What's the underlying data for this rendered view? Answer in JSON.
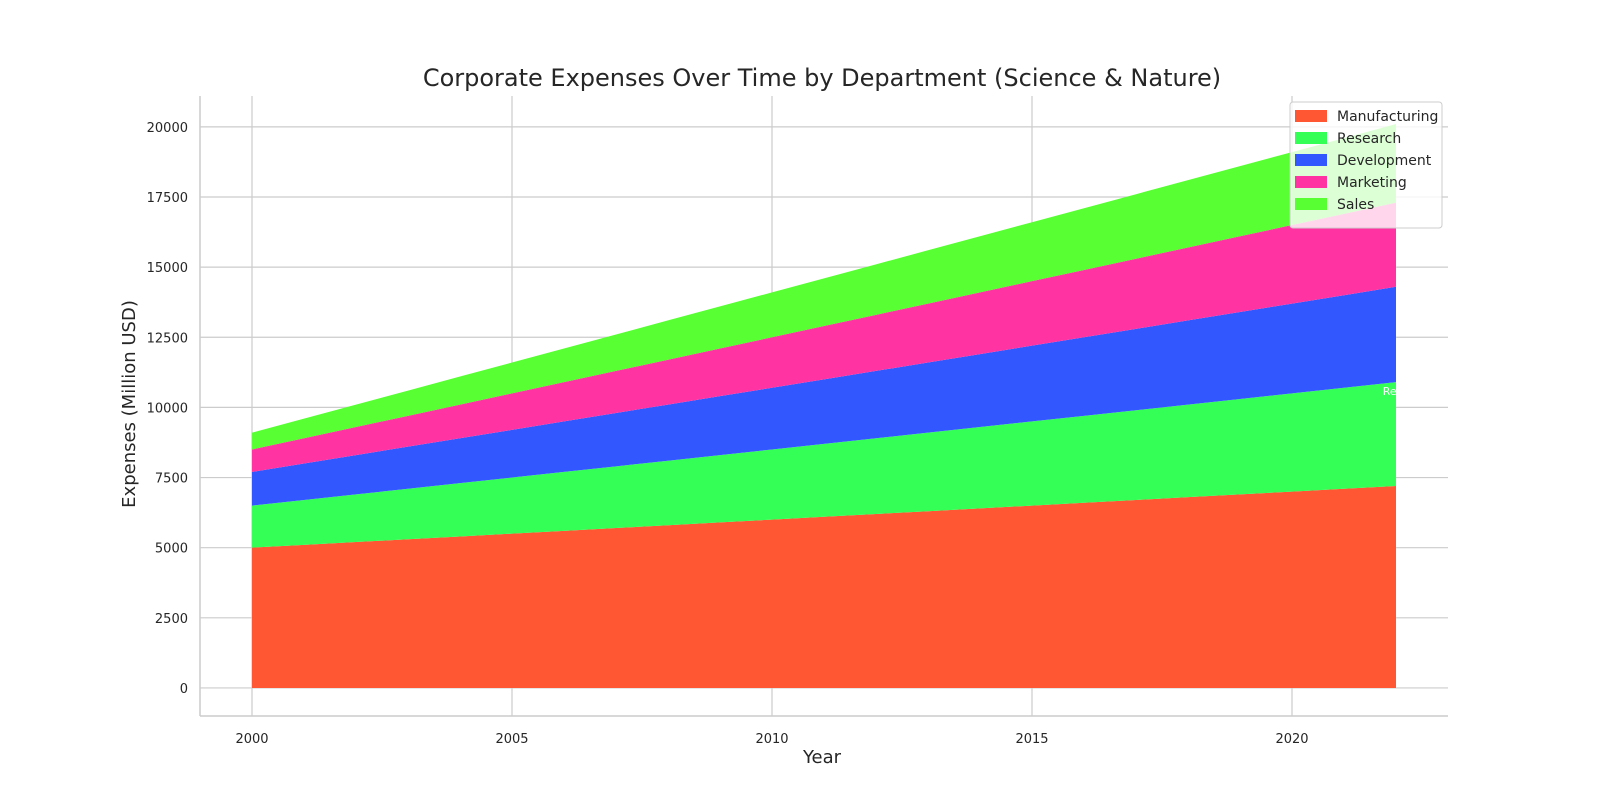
{
  "chart_data": {
    "type": "area",
    "stacked": true,
    "title": "Corporate Expenses Over Time by Department (Science & Nature)",
    "xlabel": "Year",
    "ylabel": "Expenses (Million USD)",
    "x": [
      2000,
      2001,
      2002,
      2003,
      2004,
      2005,
      2006,
      2007,
      2008,
      2009,
      2010,
      2011,
      2012,
      2013,
      2014,
      2015,
      2016,
      2017,
      2018,
      2019,
      2020,
      2021,
      2022
    ],
    "xlim": [
      1999,
      2023
    ],
    "ylim": [
      -1000,
      21100
    ],
    "x_ticks": [
      2000,
      2005,
      2010,
      2015,
      2020
    ],
    "y_ticks": [
      0,
      2500,
      5000,
      7500,
      10000,
      12500,
      15000,
      17500,
      20000
    ],
    "grid": true,
    "legend_position": "top-right",
    "series": [
      {
        "name": "Manufacturing",
        "color": "#FF5733",
        "values": [
          5000,
          5100,
          5200,
          5300,
          5400,
          5500,
          5600,
          5700,
          5800,
          5900,
          6000,
          6100,
          6200,
          6300,
          6400,
          6500,
          6600,
          6700,
          6800,
          6900,
          7000,
          7100,
          7200
        ]
      },
      {
        "name": "Research",
        "color": "#33FF57",
        "values": [
          1500,
          1600,
          1700,
          1800,
          1900,
          2000,
          2100,
          2200,
          2300,
          2400,
          2500,
          2600,
          2700,
          2800,
          2900,
          3000,
          3100,
          3200,
          3300,
          3400,
          3500,
          3600,
          3700
        ]
      },
      {
        "name": "Development",
        "color": "#3357FF",
        "values": [
          1200,
          1300,
          1400,
          1500,
          1600,
          1700,
          1800,
          1900,
          2000,
          2100,
          2200,
          2300,
          2400,
          2500,
          2600,
          2700,
          2800,
          2900,
          3000,
          3100,
          3200,
          3300,
          3400
        ]
      },
      {
        "name": "Marketing",
        "color": "#FF33A1",
        "values": [
          800,
          900,
          1000,
          1100,
          1200,
          1300,
          1400,
          1500,
          1600,
          1700,
          1800,
          1900,
          2000,
          2100,
          2200,
          2300,
          2400,
          2500,
          2600,
          2700,
          2800,
          2900,
          3000
        ]
      },
      {
        "name": "Sales",
        "color": "#57FF33",
        "values": [
          600,
          700,
          800,
          900,
          1000,
          1100,
          1200,
          1300,
          1400,
          1500,
          1600,
          1700,
          1800,
          1900,
          2000,
          2100,
          2200,
          2300,
          2400,
          2500,
          2600,
          2700,
          2800
        ]
      }
    ],
    "annotations": [
      {
        "text": "Rese",
        "x": 2022,
        "y": 10450
      }
    ]
  }
}
